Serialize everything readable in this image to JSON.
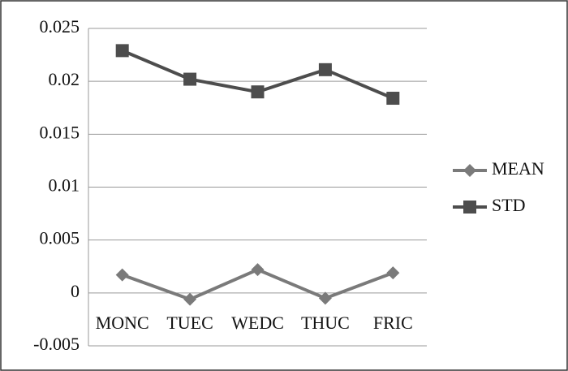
{
  "chart_data": {
    "type": "line",
    "categories": [
      "MONC",
      "TUEC",
      "WEDC",
      "THUC",
      "FRIC"
    ],
    "series": [
      {
        "name": "MEAN",
        "color": "#7a7a7a",
        "marker": "diamond",
        "values": [
          0.0017,
          -0.0006,
          0.0022,
          -0.0005,
          0.0019
        ]
      },
      {
        "name": "STD",
        "color": "#4d4d4d",
        "marker": "square",
        "values": [
          0.0229,
          0.0202,
          0.019,
          0.0211,
          0.0184
        ]
      }
    ],
    "ylim": [
      -0.005,
      0.025
    ],
    "yticks": [
      -0.005,
      0,
      0.005,
      0.01,
      0.015,
      0.02,
      0.025
    ],
    "grid": true,
    "legend": "right"
  }
}
